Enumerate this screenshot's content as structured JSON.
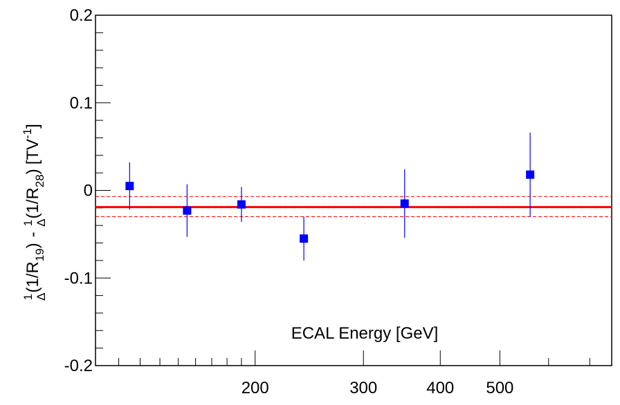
{
  "chart_data": {
    "type": "scatter",
    "x_scale": "log",
    "xlim": [
      110,
      760
    ],
    "ylim": [
      -0.2,
      0.2
    ],
    "xlabel": "ECAL Energy [GeV]",
    "ylabel_parts": {
      "frac_num_1": "1",
      "frac_den_1": "Δ",
      "term_1": "(1/R",
      "sub_1": "19",
      "close_1": ")",
      "minus": "-",
      "frac_num_2": "1",
      "frac_den_2": "Δ",
      "term_2": "(1/R",
      "sub_2": "28",
      "close_2": ")",
      "unit_open": "[TV",
      "unit_sup": "-1",
      "unit_close": "]"
    },
    "x_ticks": [
      {
        "value": 200,
        "label": "200"
      },
      {
        "value": 300,
        "label": "300"
      },
      {
        "value": 400,
        "label": "400"
      },
      {
        "value": 500,
        "label": "500"
      }
    ],
    "y_ticks": [
      {
        "value": 0.2,
        "label": "0.2"
      },
      {
        "value": 0.1,
        "label": "0.1"
      },
      {
        "value": 0,
        "label": "0"
      },
      {
        "value": -0.1,
        "label": "-0.1"
      },
      {
        "value": -0.2,
        "label": "-0.2"
      }
    ],
    "points": [
      {
        "x": 125,
        "y": 0.005,
        "err": 0.027
      },
      {
        "x": 155,
        "y": -0.023,
        "err": 0.03
      },
      {
        "x": 190,
        "y": -0.016,
        "err": 0.02
      },
      {
        "x": 240,
        "y": -0.055,
        "err": 0.025
      },
      {
        "x": 350,
        "y": -0.015,
        "err": 0.039
      },
      {
        "x": 560,
        "y": 0.018,
        "err": 0.048
      }
    ],
    "fit": {
      "value": -0.019,
      "band_low": -0.03,
      "band_high": -0.007
    },
    "colors": {
      "points": "#0000ff",
      "fit": "#ff0000",
      "axes": "#000000"
    }
  }
}
